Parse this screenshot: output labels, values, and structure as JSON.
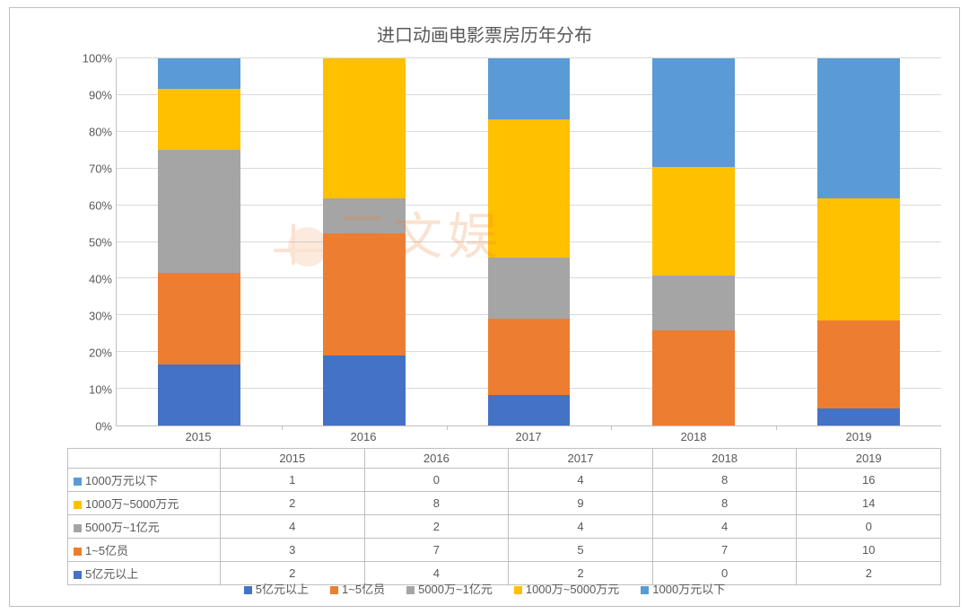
{
  "chart": {
    "type": "stacked-bar-100",
    "title": "进口动画电影票房历年分布",
    "title_fontsize": 20,
    "title_color": "#595959",
    "background_color": "#ffffff",
    "border_color": "#bfbfbf",
    "grid_color": "#d9d9d9",
    "axis_label_color": "#595959",
    "label_fontsize": 13,
    "bar_width_ratio": 0.5,
    "y": {
      "min": 0,
      "max": 100,
      "tick_step": 10,
      "format": "percent"
    },
    "categories": [
      "2015",
      "2016",
      "2017",
      "2018",
      "2019"
    ],
    "series": [
      {
        "key": "ge5yi",
        "label": "5亿元以上",
        "color": "#4472c4"
      },
      {
        "key": "1_5yi",
        "label": "1~5亿员",
        "color": "#ed7d31"
      },
      {
        "key": "5000w_1yi",
        "label": "5000万~1亿元",
        "color": "#a5a5a5"
      },
      {
        "key": "1000w_5000w",
        "label": "1000万~5000万元",
        "color": "#ffc000"
      },
      {
        "key": "lt1000w",
        "label": "1000万元以下",
        "color": "#5b9bd5"
      }
    ],
    "data": {
      "lt1000w": [
        1,
        0,
        4,
        8,
        16
      ],
      "1000w_5000w": [
        2,
        8,
        9,
        8,
        14
      ],
      "5000w_1yi": [
        4,
        2,
        4,
        4,
        0
      ],
      "1_5yi": [
        3,
        7,
        5,
        7,
        10
      ],
      "ge5yi": [
        2,
        4,
        2,
        0,
        2
      ]
    },
    "table_row_order": [
      "lt1000w",
      "1000w_5000w",
      "5000w_1yi",
      "1_5yi",
      "ge5yi"
    ],
    "legend_order": [
      "ge5yi",
      "1_5yi",
      "5000w_1yi",
      "1000w_5000w",
      "lt1000w"
    ],
    "watermark_text": "三文娱",
    "watermark_color": "#ed7d31"
  }
}
